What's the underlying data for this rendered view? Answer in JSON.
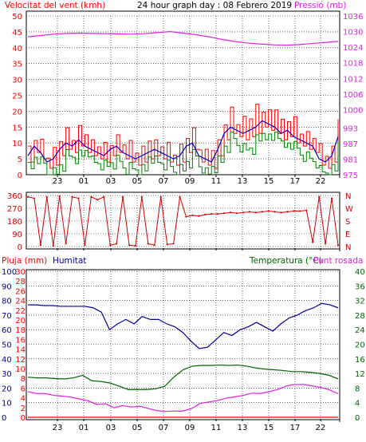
{
  "header": {
    "wind_title": "Velocitat del vent (kmh)",
    "graph_title": "24 hour graph day : 08 Febrero 2019",
    "pressure_title": "Pressió (mb)"
  },
  "middle": {
    "direction_letters": [
      "N",
      "W",
      "S",
      "E",
      "N"
    ]
  },
  "bottom_header": {
    "rain_title": "Pluja (mm)",
    "humidity_title": "Humitat",
    "temperature_title": "Temperatura (°C)",
    "dewpoint_title": "Punt rosada"
  },
  "colors": {
    "wind": "#ff0000",
    "gust": "#ff0000",
    "wind_avg": "#0000c8",
    "wind_green": "#008000",
    "pressure": "#e020e0",
    "direction": "#d00000",
    "humidity": "#0000a0",
    "temperature": "#006400",
    "dewpoint": "#e020e0",
    "grid": "#000000"
  },
  "chart_data": [
    {
      "type": "line",
      "title": "Velocitat del vent (kmh)",
      "x_ticks": [
        "23",
        "01",
        "03",
        "05",
        "07",
        "09",
        "11",
        "13",
        "15",
        "17",
        "22"
      ],
      "y_ticks_left": [
        0,
        5,
        10,
        15,
        20,
        25,
        30,
        35,
        40,
        45,
        50
      ],
      "ylim_left": [
        0,
        50
      ],
      "y_ticks_right": [
        975,
        981,
        987,
        993,
        1000,
        1006,
        1012,
        1018,
        1024,
        1030,
        1036
      ],
      "ylim_right": [
        975,
        1036
      ],
      "series": [
        {
          "name": "Velocitat del vent (kmh)",
          "values": [
            6,
            9,
            7,
            4,
            5,
            8,
            10,
            9,
            11,
            9,
            8,
            7,
            6,
            8,
            9,
            7,
            6,
            5,
            6,
            7,
            8,
            7,
            6,
            5,
            6,
            9,
            10,
            6,
            5,
            4,
            8,
            13,
            15,
            14,
            13,
            14,
            15,
            17,
            16,
            15,
            13,
            14,
            12,
            11,
            10,
            9,
            5,
            4,
            6,
            12
          ]
        },
        {
          "name": "Pressió (mb)",
          "values": [
            1028,
            1028.5,
            1029,
            1029.3,
            1029.4,
            1029.3,
            1029.2,
            1029.1,
            1029,
            1029.2,
            1029.6,
            1030,
            1029.4,
            1028.8,
            1028,
            1027,
            1026.2,
            1025.6,
            1025.2,
            1024.9,
            1024.8,
            1025,
            1025.4,
            1025.8,
            1026.2
          ]
        }
      ]
    },
    {
      "type": "scatter",
      "title": "",
      "x_ticks": [
        "23",
        "01",
        "03",
        "05",
        "07",
        "09",
        "11",
        "13",
        "15",
        "17",
        "22"
      ],
      "y_ticks": [
        0,
        90,
        180,
        270,
        360
      ],
      "ylim": [
        0,
        360
      ],
      "series": [
        {
          "name": "",
          "values": [
            350,
            340,
            10,
            350,
            5,
            355,
            20,
            350,
            340,
            10,
            350,
            330,
            350,
            10,
            20,
            350,
            10,
            5,
            350,
            20,
            10,
            350,
            15,
            20,
            350,
            210,
            220,
            215,
            225,
            230,
            230,
            235,
            240,
            235,
            240,
            245,
            240,
            245,
            250,
            245,
            240,
            245,
            250,
            250,
            255,
            30,
            350,
            20,
            340,
            10
          ]
        }
      ]
    },
    {
      "type": "line",
      "title": "",
      "x_ticks": [
        "23",
        "01",
        "03",
        "05",
        "07",
        "09",
        "11",
        "13",
        "15",
        "17",
        "22"
      ],
      "y_ticks_rain": [
        0,
        2,
        4,
        6,
        8,
        10,
        12,
        14,
        16,
        18,
        20,
        22,
        24,
        26,
        28,
        30
      ],
      "y_ticks_humidity": [
        0,
        10,
        20,
        30,
        40,
        50,
        60,
        70,
        80,
        90,
        100
      ],
      "y_ticks_temp": [
        0,
        4,
        8,
        12,
        16,
        20,
        24,
        28,
        32,
        36,
        40
      ],
      "ylim_rain": [
        0,
        30
      ],
      "ylim_humidity": [
        0,
        100
      ],
      "ylim_temp": [
        0,
        40
      ],
      "series": [
        {
          "name": "Humitat",
          "values": [
            77,
            77,
            76.5,
            76.5,
            76,
            76,
            76,
            76,
            75,
            72,
            60,
            64,
            67,
            64,
            69,
            67,
            67,
            64,
            62,
            58,
            52,
            47,
            48,
            53,
            58,
            56,
            60,
            62,
            65,
            62,
            59,
            64,
            68,
            70,
            73,
            75,
            78,
            77,
            75
          ]
        },
        {
          "name": "Temperatura (°C)",
          "values": [
            11,
            10.8,
            10.8,
            10.6,
            10.5,
            10.8,
            11.5,
            10,
            9.8,
            9.4,
            8.5,
            7.6,
            7.6,
            7.6,
            7.8,
            8.5,
            11,
            13,
            14,
            14.2,
            14.2,
            14.3,
            14.2,
            14.3,
            14,
            13.5,
            13.2,
            13,
            12.8,
            12.5,
            12.5,
            12.3,
            12,
            11.5,
            10.5
          ]
        },
        {
          "name": "Punt rosada",
          "values": [
            7,
            6.5,
            6.5,
            6,
            5.8,
            5.5,
            5,
            4.5,
            3.5,
            3.7,
            2.6,
            3.2,
            2.8,
            3,
            2.4,
            1.8,
            1.6,
            1.7,
            1.7,
            2.4,
            3.8,
            4.2,
            4.6,
            5.2,
            5.6,
            6,
            6.6,
            6.5,
            7,
            7.6,
            8.6,
            9,
            9,
            8.6,
            8.2,
            7.5,
            6.5
          ]
        },
        {
          "name": "Pluja (mm)",
          "values": [
            0,
            0,
            0,
            0,
            0,
            0,
            0,
            0,
            0,
            0,
            0,
            0
          ]
        }
      ]
    }
  ]
}
